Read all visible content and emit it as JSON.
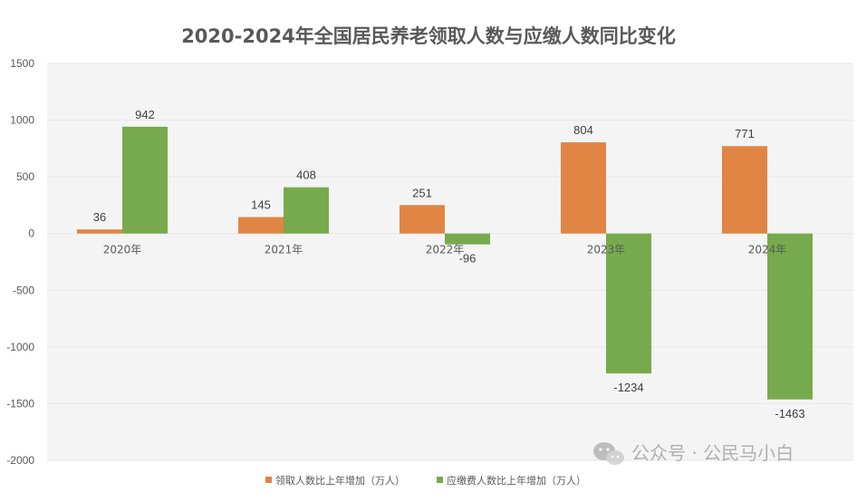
{
  "colors": {
    "series1": "#E08543",
    "series2": "#77AA4C",
    "grid": "#e6e6e6",
    "plot_bg": "#f4f4f4",
    "text": "#595959"
  },
  "watermark": {
    "icon": "wechat-icon",
    "text": "公众号 · 公民马小白"
  },
  "chart_data": {
    "type": "bar",
    "title": "2020-2024年全国居民养老领取人数与应缴人数同比变化",
    "xlabel": "",
    "ylabel": "",
    "ylim": [
      -2000,
      1500
    ],
    "yticks": [
      1500,
      1000,
      500,
      0,
      -500,
      -1000,
      -1500,
      -2000
    ],
    "ytick_labels": [
      "1500",
      "1000",
      "500",
      "0",
      "-500",
      "-1000",
      "-1500",
      "-2000"
    ],
    "categories": [
      "2020年",
      "2021年",
      "2022年",
      "2023年",
      "2024年"
    ],
    "legend_position": "bottom",
    "grid": true,
    "series": [
      {
        "name": "领取人数比上年增加（万人）",
        "values": [
          36,
          145,
          251,
          804,
          771
        ],
        "labels": [
          "36",
          "145",
          "251",
          "804",
          "771"
        ]
      },
      {
        "name": "应缴费人数比上年增加（万人）",
        "values": [
          942,
          408,
          -96,
          -1234,
          -1463
        ],
        "labels": [
          "942",
          "408",
          "-96",
          "-1234",
          "-1463"
        ]
      }
    ]
  }
}
